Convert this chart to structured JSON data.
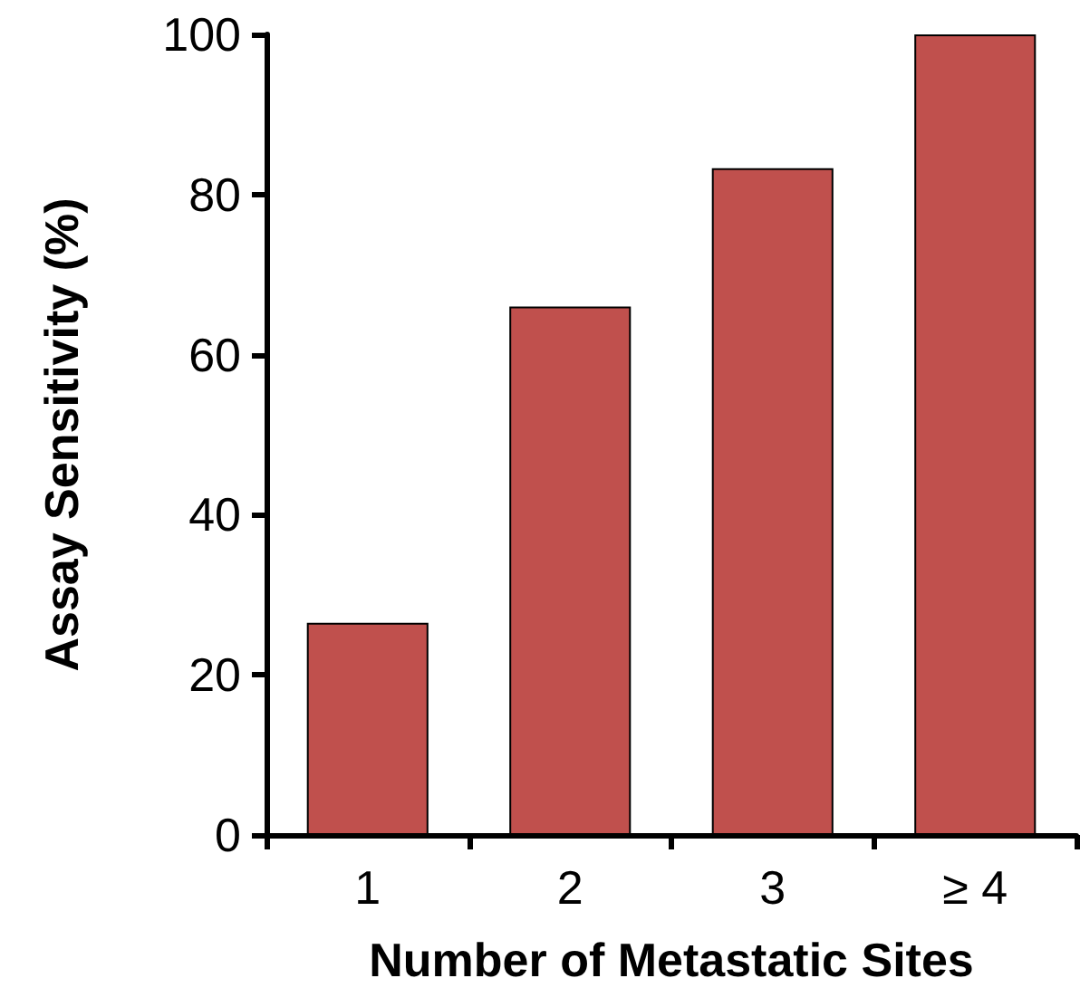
{
  "chart_data": {
    "type": "bar",
    "xlabel": "Number of Metastatic Sites",
    "ylabel": "Assay Sensitivity (%)",
    "categories": [
      "1",
      "2",
      "3",
      "≥ 4"
    ],
    "values": [
      26.5,
      66,
      83.3,
      100
    ],
    "color": "#c0504d",
    "ylim": [
      0,
      100
    ],
    "yticks": [
      0,
      20,
      40,
      60,
      80,
      100
    ],
    "grid": false
  }
}
